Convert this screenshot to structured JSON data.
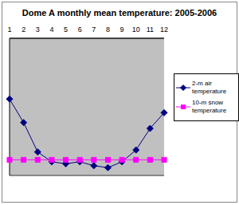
{
  "chart_data": {
    "type": "line",
    "title": "Dome A monthly mean temperature: 2005-2006",
    "categories": [
      "1",
      "2",
      "3",
      "4",
      "5",
      "6",
      "7",
      "8",
      "9",
      "10",
      "11",
      "12"
    ],
    "series": [
      {
        "name": "2-m air temperature",
        "color": "#000080",
        "marker": "diamond",
        "values": [
          -31,
          -43,
          -58,
          -63,
          -64,
          -63,
          -65,
          -66,
          -63,
          -57,
          -46,
          -38
        ]
      },
      {
        "name": "10-m snow temperature",
        "color": "#ff00ff",
        "marker": "square",
        "values": [
          -62,
          -62,
          -62,
          -62,
          -62,
          -62,
          -62,
          -62,
          -62,
          -62,
          -62,
          -62
        ]
      }
    ],
    "ylim": [
      -70,
      0
    ],
    "yticks": [
      -70,
      -60,
      -50,
      -40,
      -30,
      -20,
      -10,
      0
    ],
    "grid": true,
    "legend": "right",
    "tick_labels": "x"
  }
}
